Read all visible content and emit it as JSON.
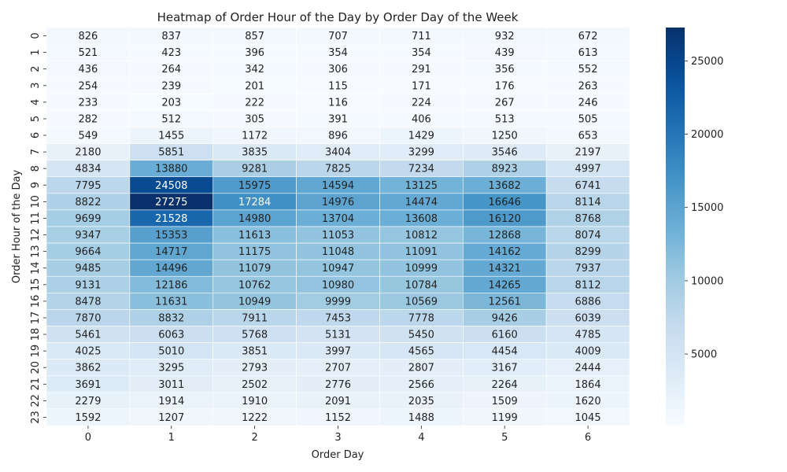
{
  "chart_data": {
    "type": "heatmap",
    "title": "Heatmap of Order Hour of the Day by Order Day of the Week",
    "xlabel": "Order Day",
    "ylabel": "Order Hour of the Day",
    "x_categories": [
      "0",
      "1",
      "2",
      "3",
      "4",
      "5",
      "6"
    ],
    "y_categories": [
      "0",
      "1",
      "2",
      "3",
      "4",
      "5",
      "6",
      "7",
      "8",
      "9",
      "10",
      "11",
      "12",
      "13",
      "14",
      "15",
      "16",
      "17",
      "18",
      "19",
      "20",
      "21",
      "22",
      "23"
    ],
    "values": [
      [
        826,
        837,
        857,
        707,
        711,
        932,
        672
      ],
      [
        521,
        423,
        396,
        354,
        354,
        439,
        613
      ],
      [
        436,
        264,
        342,
        306,
        291,
        356,
        552
      ],
      [
        254,
        239,
        201,
        115,
        171,
        176,
        263
      ],
      [
        233,
        203,
        222,
        116,
        224,
        267,
        246
      ],
      [
        282,
        512,
        305,
        391,
        406,
        513,
        505
      ],
      [
        549,
        1455,
        1172,
        896,
        1429,
        1250,
        653
      ],
      [
        2180,
        5851,
        3835,
        3404,
        3299,
        3546,
        2197
      ],
      [
        4834,
        13880,
        9281,
        7825,
        7234,
        8923,
        4997
      ],
      [
        7795,
        24508,
        15975,
        14594,
        13125,
        13682,
        6741
      ],
      [
        8822,
        27275,
        17284,
        14976,
        14474,
        16646,
        8114
      ],
      [
        9699,
        21528,
        14980,
        13704,
        13608,
        16120,
        8768
      ],
      [
        9347,
        15353,
        11613,
        11053,
        10812,
        12868,
        8074
      ],
      [
        9664,
        14717,
        11175,
        11048,
        11091,
        14162,
        8299
      ],
      [
        9485,
        14496,
        11079,
        10947,
        10999,
        14321,
        7937
      ],
      [
        9131,
        12186,
        10762,
        10980,
        10784,
        14265,
        8112
      ],
      [
        8478,
        11631,
        10949,
        9999,
        10569,
        12561,
        6886
      ],
      [
        7870,
        8832,
        7911,
        7453,
        7778,
        9426,
        6039
      ],
      [
        5461,
        6063,
        5768,
        5131,
        5450,
        6160,
        4785
      ],
      [
        4025,
        5010,
        3851,
        3997,
        4565,
        4454,
        4009
      ],
      [
        3862,
        3295,
        2793,
        2707,
        2807,
        3167,
        2444
      ],
      [
        3691,
        3011,
        2502,
        2776,
        2566,
        2264,
        1864
      ],
      [
        2279,
        1914,
        1910,
        2091,
        2035,
        1509,
        1620
      ],
      [
        1592,
        1207,
        1222,
        1152,
        1488,
        1199,
        1045
      ]
    ],
    "colormap": "Blues",
    "vmin": 115,
    "vmax": 27275,
    "colorbar_ticks": [
      5000,
      10000,
      15000,
      20000,
      25000
    ],
    "annotations": true
  }
}
